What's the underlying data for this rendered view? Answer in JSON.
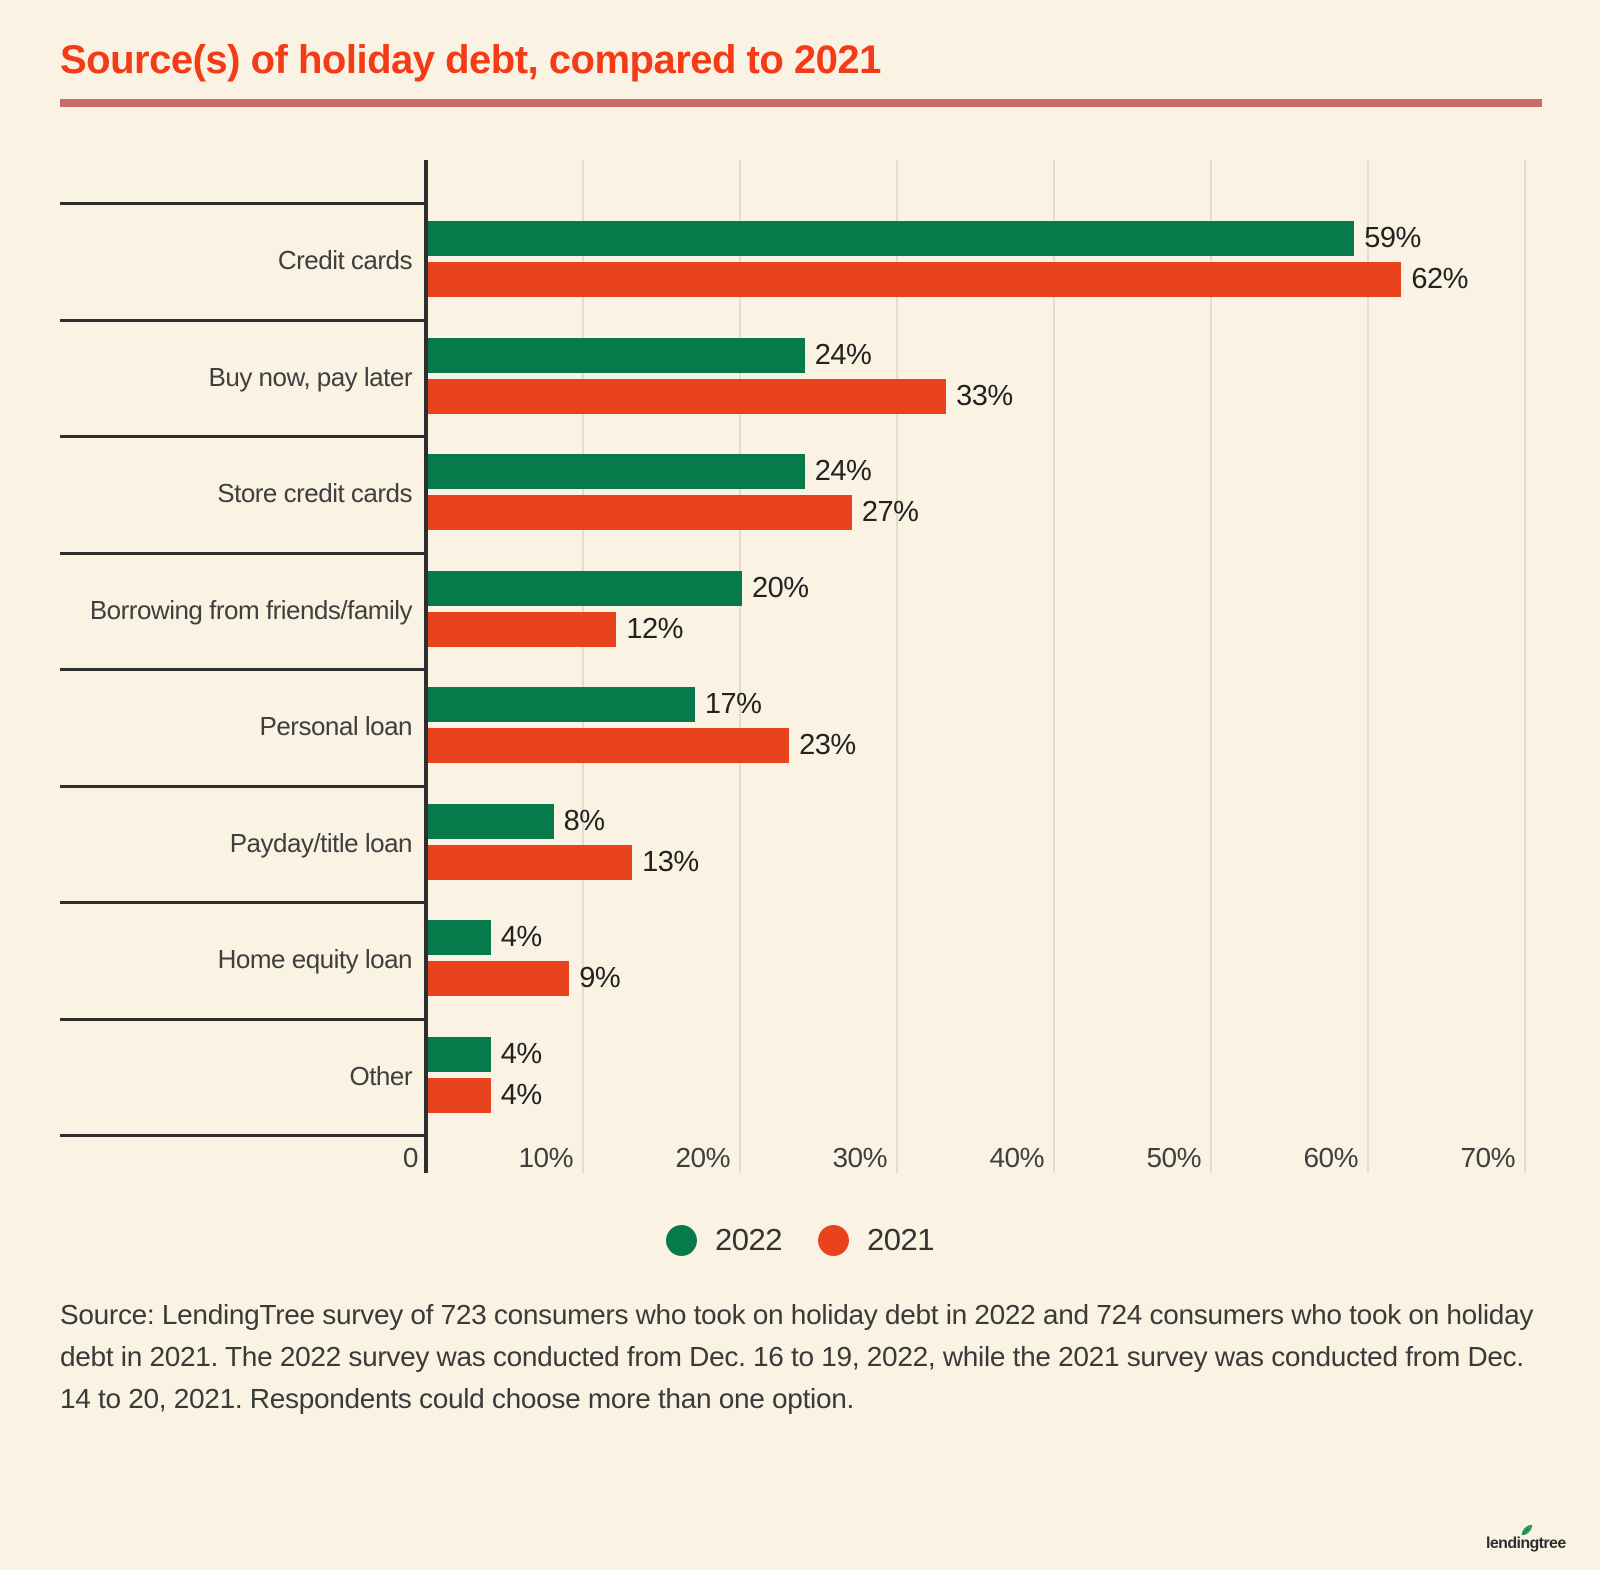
{
  "title": "Source(s) of holiday debt, compared to 2021",
  "chart_data": {
    "type": "bar",
    "orientation": "horizontal",
    "categories": [
      "Credit cards",
      "Buy now, pay later",
      "Store credit cards",
      "Borrowing from friends/family",
      "Personal loan",
      "Payday/title loan",
      "Home equity loan",
      "Other"
    ],
    "series": [
      {
        "name": "2022",
        "color": "#077a4c",
        "values": [
          59,
          24,
          24,
          20,
          17,
          8,
          4,
          4
        ]
      },
      {
        "name": "2021",
        "color": "#e8431d",
        "values": [
          62,
          33,
          27,
          12,
          23,
          13,
          9,
          4
        ]
      }
    ],
    "value_suffix": "%",
    "xlim": [
      0,
      70
    ],
    "x_tick_labels": [
      "0",
      "10%",
      "20%",
      "30%",
      "40%",
      "50%",
      "60%",
      "70%"
    ],
    "grid": "vertical",
    "legend_position": "bottom"
  },
  "legend": [
    {
      "label": "2022",
      "color": "#077a4c"
    },
    {
      "label": "2021",
      "color": "#e8431d"
    }
  ],
  "source_note": "Source: LendingTree survey of 723 consumers who took on holiday debt in 2022 and 724 consumers who took on holiday debt in 2021. The 2022 survey was conducted from Dec. 16 to 19, 2022, while the 2021 survey was conducted from Dec. 14 to 20, 2021. Respondents could choose more than one option.",
  "branding": {
    "logo_text": "lendingtree",
    "leaf_icon": "leaf-icon",
    "leaf_color": "#2f9e62"
  },
  "colors": {
    "background": "#faf3e3",
    "title": "#f33b17",
    "title_rule": "#c96b68",
    "axis_line": "#2e2e2e",
    "gridline": "#e2ddcd",
    "text": "#3a3a3a"
  }
}
